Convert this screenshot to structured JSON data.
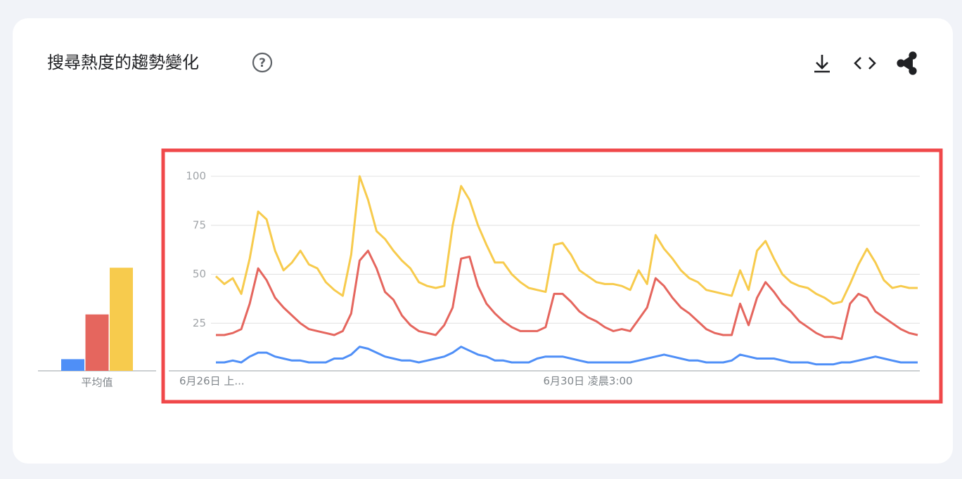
{
  "header": {
    "title": "搜尋熱度的趨勢變化"
  },
  "chart_data": [
    {
      "type": "bar",
      "categories": [
        "平均值"
      ],
      "ylim": [
        0,
        100
      ],
      "series": [
        {
          "color": "#4f8ff7",
          "values": [
            6
          ]
        },
        {
          "color": "#e5665e",
          "values": [
            29
          ]
        },
        {
          "color": "#f7cb4d",
          "values": [
            53
          ]
        }
      ]
    },
    {
      "type": "line",
      "ylim": [
        0,
        100
      ],
      "yticks": [
        25,
        50,
        75,
        100
      ],
      "grid": true,
      "categories": [
        "6月26日 上...",
        null,
        null,
        null,
        null,
        null,
        null,
        null,
        null,
        null,
        null,
        null,
        null,
        null,
        null,
        null,
        null,
        null,
        null,
        null,
        null,
        null,
        null,
        null,
        null,
        null,
        null,
        null,
        null,
        null,
        null,
        null,
        null,
        null,
        null,
        null,
        null,
        null,
        null,
        null,
        null,
        null,
        null,
        null,
        "6月30日 凌晨3:00",
        null,
        null,
        null,
        null,
        null,
        null,
        null,
        null,
        null,
        null,
        null,
        null,
        null,
        null,
        null,
        null,
        null,
        null,
        null,
        null,
        null,
        null,
        null,
        null,
        null,
        null,
        null,
        null,
        null,
        null,
        null,
        null,
        null,
        null,
        null,
        null,
        null,
        null,
        null
      ],
      "series": [
        {
          "color": "#4f8ff7",
          "values": [
            5,
            5,
            6,
            5,
            8,
            10,
            10,
            8,
            7,
            6,
            6,
            5,
            5,
            5,
            7,
            7,
            9,
            13,
            12,
            10,
            8,
            7,
            6,
            6,
            5,
            6,
            7,
            8,
            10,
            13,
            11,
            9,
            8,
            6,
            6,
            5,
            5,
            5,
            7,
            8,
            8,
            8,
            7,
            6,
            5,
            5,
            5,
            5,
            5,
            5,
            6,
            7,
            8,
            9,
            8,
            7,
            6,
            6,
            5,
            5,
            5,
            6,
            9,
            8,
            7,
            7,
            7,
            6,
            5,
            5,
            5,
            4,
            4,
            4,
            5,
            5,
            6,
            7,
            8,
            7,
            6,
            5,
            5,
            5
          ]
        },
        {
          "color": "#e5665e",
          "values": [
            19,
            19,
            20,
            22,
            35,
            53,
            47,
            38,
            33,
            29,
            25,
            22,
            21,
            20,
            19,
            21,
            30,
            57,
            62,
            53,
            41,
            37,
            29,
            24,
            21,
            20,
            19,
            24,
            33,
            58,
            59,
            44,
            35,
            30,
            26,
            23,
            21,
            21,
            21,
            23,
            40,
            40,
            36,
            31,
            28,
            26,
            23,
            21,
            22,
            21,
            27,
            33,
            48,
            44,
            38,
            33,
            30,
            26,
            22,
            20,
            19,
            19,
            35,
            24,
            38,
            46,
            41,
            35,
            31,
            26,
            23,
            20,
            18,
            18,
            17,
            35,
            40,
            38,
            31,
            28,
            25,
            22,
            20,
            19
          ]
        },
        {
          "color": "#f7cb4d",
          "values": [
            49,
            45,
            48,
            40,
            58,
            82,
            78,
            62,
            52,
            56,
            62,
            55,
            53,
            46,
            42,
            39,
            60,
            100,
            88,
            72,
            68,
            62,
            57,
            53,
            46,
            44,
            43,
            44,
            75,
            95,
            88,
            75,
            65,
            56,
            56,
            50,
            46,
            43,
            42,
            41,
            65,
            66,
            60,
            52,
            49,
            46,
            45,
            45,
            44,
            42,
            52,
            45,
            70,
            63,
            58,
            52,
            48,
            46,
            42,
            41,
            40,
            39,
            52,
            42,
            62,
            67,
            58,
            50,
            46,
            44,
            43,
            40,
            38,
            35,
            36,
            45,
            55,
            63,
            56,
            47,
            43,
            44,
            43,
            43
          ]
        }
      ]
    }
  ]
}
